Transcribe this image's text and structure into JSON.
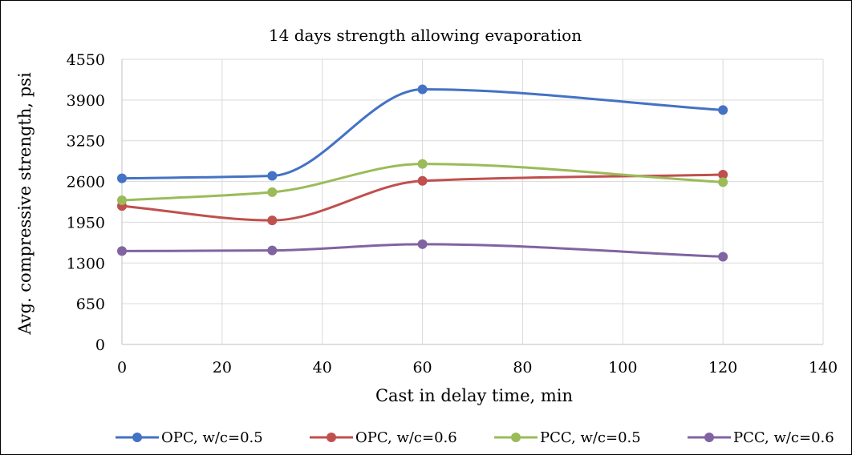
{
  "chart_data": {
    "type": "line",
    "smooth": true,
    "title": "14 days strength allowing evaporation",
    "xlabel": "Cast in delay time, min",
    "ylabel": "Avg. compressive strength, psi",
    "xlim": [
      0,
      140
    ],
    "ylim": [
      0,
      4550
    ],
    "x_ticks": [
      0,
      20,
      40,
      60,
      80,
      100,
      120,
      140
    ],
    "y_ticks": [
      0,
      650,
      1300,
      1950,
      2600,
      3250,
      3900,
      4550
    ],
    "grid": true,
    "legend_position": "bottom",
    "x": [
      0,
      30,
      60,
      120
    ],
    "series": [
      {
        "name": "OPC, w/c=0.5",
        "color": "#4472c4",
        "values": [
          2650,
          2690,
          4070,
          3740
        ]
      },
      {
        "name": "OPC, w/c=0.6",
        "color": "#c0504d",
        "values": [
          2210,
          1980,
          2610,
          2710
        ]
      },
      {
        "name": "PCC, w/c=0.5",
        "color": "#9bbb59",
        "values": [
          2300,
          2430,
          2880,
          2590
        ]
      },
      {
        "name": "PCC, w/c=0.6",
        "color": "#8064a2",
        "values": [
          1490,
          1500,
          1600,
          1400
        ]
      }
    ]
  }
}
